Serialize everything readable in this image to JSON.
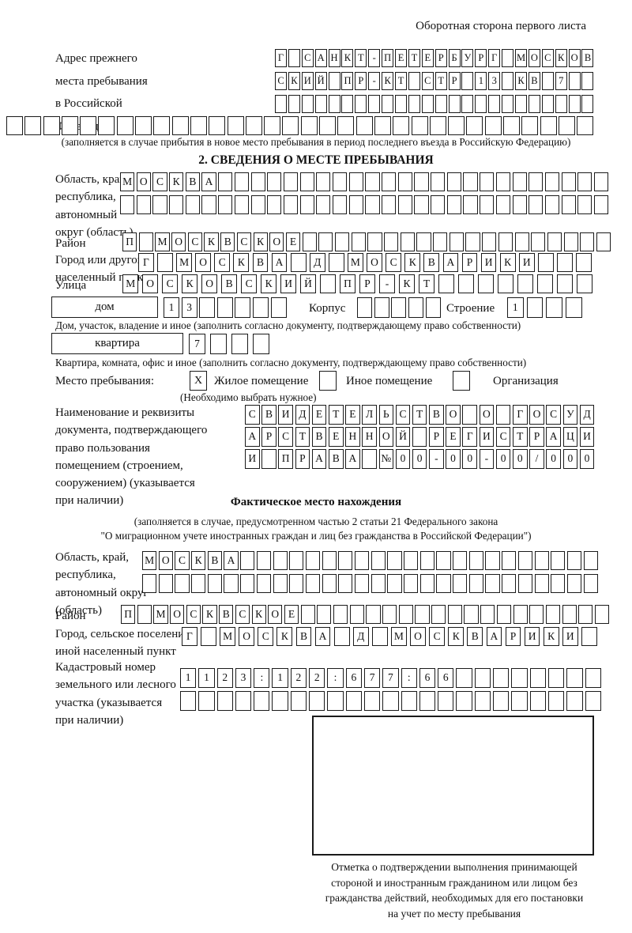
{
  "page": {
    "header": "Оборотная сторона первого листа"
  },
  "prev_address": {
    "label_lines": [
      "Адрес прежнего",
      "места пребывания",
      "в Российской",
      "Федерации"
    ],
    "row1": {
      "text": "Г САНКТ-ПЕТЕРБУРГ МОСКОВ",
      "len": 24
    },
    "row2": {
      "text": "СКИЙ ПР-КТ СТР 13 КВ 7",
      "len": 24
    },
    "row3": {
      "text": "",
      "len": 24
    },
    "row4": {
      "text": "",
      "len": 32
    },
    "note": "(заполняется в случае прибытия в новое место пребывания в период последнего въезда в Российскую Федерацию)"
  },
  "section2": {
    "title": "2. СВЕДЕНИЯ О МЕСТЕ ПРЕБЫВАНИЯ",
    "oblast": {
      "label_lines": [
        "Область, край,",
        "республика,",
        "автономный",
        "округ (область)"
      ],
      "row1": {
        "text": "МОСКВА",
        "len": 30
      },
      "row2": {
        "text": "",
        "len": 30
      }
    },
    "raion": {
      "label": "Район",
      "row": {
        "text": "П МОСКВСКОЕ",
        "len": 30
      }
    },
    "gorod": {
      "label_lines": [
        "Город или другой",
        "населенный пункт"
      ],
      "row": {
        "text": "Г МОСКВА Д МОСКВАРИКИ",
        "len": 24
      }
    },
    "ulitsa": {
      "label": "Улица",
      "row": {
        "text": "МОСКОВСКИЙ ПР-КТ",
        "len": 24
      }
    },
    "dom": {
      "box_label": "дом",
      "cells": {
        "text": "13",
        "len": 7
      },
      "korpus_label": "Корпус",
      "korpus_cells": {
        "text": "",
        "len": 5
      },
      "stroenie_label": "Строение",
      "stroenie_cells": {
        "text": "1",
        "len": 4
      },
      "note": "Дом, участок, владение и иное (заполнить согласно документу, подтверждающему право собственности)"
    },
    "kvartira": {
      "box_label": "квартира",
      "cells": {
        "text": "7",
        "len": 4
      },
      "note": "Квартира, комната, офис и иное (заполнить согласно документу, подтверждающему право собственности)"
    },
    "mesto": {
      "label": "Место пребывания:",
      "opt1_box": "X",
      "opt1_label": "Жилое помещение",
      "opt2_box": "",
      "opt2_label": "Иное помещение",
      "opt3_box": "",
      "opt3_label": "Организация",
      "hint": "(Необходимо выбрать нужное)"
    },
    "doc": {
      "label_lines": [
        "Наименование и реквизиты",
        "документа, подтверждающего",
        "право пользования",
        "помещением (строением,",
        "сооружением) (указывается",
        "при наличии)"
      ],
      "row1": {
        "text": "СВИДЕТЕЛЬСТВО О ГОСУД",
        "len": 21
      },
      "row2": {
        "text": "АРСТВЕННОЙ РЕГИСТРАЦИ",
        "len": 21
      },
      "row3": {
        "text": "И ПРАВА №00-00-00/000",
        "len": 21
      }
    }
  },
  "fact": {
    "title": "Фактическое место нахождения",
    "note1": "(заполняется в случае, предусмотренном частью 2 статьи 21 Федерального закона",
    "note2": "\"О миграционном учете иностранных граждан и лиц без гражданства в Российской Федерации\")",
    "oblast": {
      "label_lines": [
        "Область, край,",
        "республика,",
        "автономный округ",
        "(область)"
      ],
      "row1": {
        "text": "МОСКВА",
        "len": 28
      },
      "row2": {
        "text": "",
        "len": 28
      }
    },
    "raion": {
      "label": "Район",
      "row": {
        "text": "П МОСКВСКОЕ",
        "len": 30
      }
    },
    "gorod": {
      "label_lines": [
        "Город, сельское поселение,",
        "иной населенный пункт"
      ],
      "row": {
        "text": "Г МОСКВА Д МОСКВАРИКИ",
        "len": 22
      }
    },
    "kadastr": {
      "label_lines": [
        "Кадастровый номер",
        "земельного или лесного",
        "участка (указывается",
        "при наличии)"
      ],
      "row1": {
        "text": "1123:122:677:66",
        "len": 23
      },
      "row2": {
        "text": "",
        "len": 23
      }
    }
  },
  "stamp": {
    "caption_lines": [
      "Отметка о подтверждении выполнения принимающей",
      "стороной и иностранным гражданином или лицом без",
      "гражданства действий, необходимых для его постановки",
      "на учет по месту пребывания"
    ]
  }
}
